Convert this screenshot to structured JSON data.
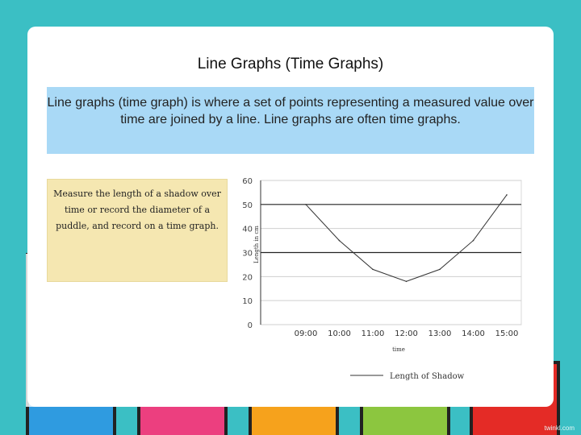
{
  "header": {
    "title": "Line Graphs (Time Graphs)"
  },
  "description": "Line graphs (time graph) is where a set of points representing a measured value over time are joined by a line. Line graphs are often time graphs.",
  "note": "Measure the length of a shadow over time or record the diameter of a puddle, and record on a time graph.",
  "watermark": "twinkl.com",
  "chart_data": {
    "type": "line",
    "x": [
      "09:00",
      "10:00",
      "11:00",
      "12:00",
      "13:00",
      "14:00",
      "15:00"
    ],
    "series": [
      {
        "name": "Length of Shadow",
        "values": [
          50,
          35,
          23,
          18,
          23,
          35,
          54
        ],
        "color": "#333333"
      }
    ],
    "xlabel": "time",
    "ylabel": "Length in cm",
    "ylim": [
      0,
      60
    ],
    "yticks": [
      0,
      10,
      20,
      30,
      40,
      50,
      60
    ],
    "grid": true,
    "legend": "bottom"
  },
  "colors": {
    "background": "#3bbfc4",
    "description_bg": "#a9d9f6",
    "note_bg": "#f5e7b1"
  }
}
